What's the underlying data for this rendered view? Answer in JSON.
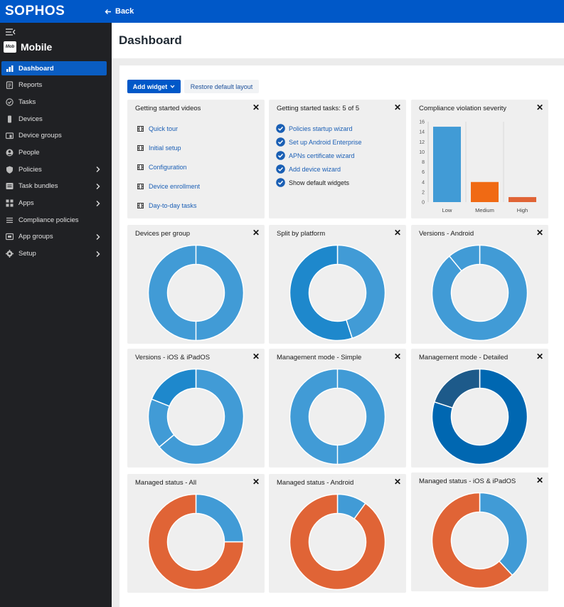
{
  "topbar": {
    "logo": "SOPHOS",
    "back_label": "Back"
  },
  "sidebar": {
    "brand_icon_text": "Mob",
    "brand": "Mobile",
    "items": [
      {
        "label": "Dashboard",
        "icon": "dashboard-icon",
        "active": true,
        "chevron": false
      },
      {
        "label": "Reports",
        "icon": "reports-icon",
        "chevron": false
      },
      {
        "label": "Tasks",
        "icon": "tasks-icon",
        "chevron": false
      },
      {
        "label": "Devices",
        "icon": "devices-icon",
        "chevron": false
      },
      {
        "label": "Device groups",
        "icon": "device-groups-icon",
        "chevron": false
      },
      {
        "label": "People",
        "icon": "people-icon",
        "chevron": false
      },
      {
        "label": "Policies",
        "icon": "policies-icon",
        "chevron": true
      },
      {
        "label": "Task bundles",
        "icon": "task-bundles-icon",
        "chevron": true
      },
      {
        "label": "Apps",
        "icon": "apps-icon",
        "chevron": true
      },
      {
        "label": "Compliance policies",
        "icon": "compliance-icon",
        "chevron": false
      },
      {
        "label": "App groups",
        "icon": "app-groups-icon",
        "chevron": true
      },
      {
        "label": "Setup",
        "icon": "setup-icon",
        "chevron": true
      }
    ]
  },
  "page": {
    "title": "Dashboard"
  },
  "toolbar": {
    "add_widget": "Add widget",
    "restore_layout": "Restore default layout"
  },
  "colors": {
    "primary": "#0058c8",
    "sidebar": "#202124",
    "blue": "#419bd6",
    "darkblue": "#0067b1",
    "navy": "#1d5a8a",
    "orange": "#f06a14",
    "red_orange": "#e06436"
  },
  "widgets": {
    "videos": {
      "title": "Getting started videos",
      "items": [
        "Quick tour",
        "Initial setup",
        "Configuration",
        "Device enrollment",
        "Day-to-day tasks"
      ]
    },
    "tasks": {
      "title": "Getting started tasks: 5 of 5",
      "items": [
        {
          "label": "Policies startup wizard",
          "link": true
        },
        {
          "label": "Set up Android Enterprise",
          "link": true
        },
        {
          "label": "APNs certificate wizard",
          "link": true
        },
        {
          "label": "Add device wizard",
          "link": true
        },
        {
          "label": "Show default widgets",
          "link": false
        }
      ]
    },
    "devices_per_group": {
      "title": "Devices per group"
    },
    "split_by_platform": {
      "title": "Split by platform"
    },
    "versions_android": {
      "title": "Versions - Android"
    },
    "versions_ios": {
      "title": "Versions - iOS & iPadOS"
    },
    "mgmt_simple": {
      "title": "Management mode - Simple"
    },
    "mgmt_detailed": {
      "title": "Management mode - Detailed"
    },
    "managed_all": {
      "title": "Managed status - All"
    },
    "managed_android": {
      "title": "Managed status - Android"
    },
    "managed_ios": {
      "title": "Managed status - iOS & iPadOS"
    },
    "compliance": {
      "title": "Compliance violation severity"
    }
  },
  "chart_data": [
    {
      "type": "bar",
      "title": "Compliance violation severity",
      "categories": [
        "Low",
        "Medium",
        "High"
      ],
      "values": [
        15,
        4,
        1
      ],
      "colors": [
        "#419bd6",
        "#f06a14",
        "#e06436"
      ],
      "ylim": [
        0,
        16
      ],
      "yticks": [
        0,
        2,
        4,
        6,
        8,
        10,
        12,
        14,
        16
      ],
      "grid": true
    },
    {
      "type": "pie",
      "title": "Devices per group",
      "values": [
        1
      ],
      "colors": [
        "#419bd6"
      ]
    },
    {
      "type": "pie",
      "title": "Split by platform",
      "values": [
        0.45,
        0.55
      ],
      "colors": [
        "#419bd6",
        "#1e88cc"
      ]
    },
    {
      "type": "pie",
      "title": "Versions - Android",
      "values": [
        0.89,
        0.11
      ],
      "colors": [
        "#419bd6",
        "#419bd6"
      ]
    },
    {
      "type": "pie",
      "title": "Versions - iOS & iPadOS",
      "values": [
        0.64,
        0.17,
        0.19
      ],
      "colors": [
        "#419bd6",
        "#419bd6",
        "#1e88cc"
      ]
    },
    {
      "type": "pie",
      "title": "Management mode - Simple",
      "values": [
        1
      ],
      "colors": [
        "#419bd6"
      ]
    },
    {
      "type": "pie",
      "title": "Management mode - Detailed",
      "values": [
        0.8,
        0.2
      ],
      "colors": [
        "#0067b1",
        "#1d5a8a"
      ]
    },
    {
      "type": "pie",
      "title": "Managed status - All",
      "values": [
        0.25,
        0.75
      ],
      "colors": [
        "#419bd6",
        "#e06436"
      ]
    },
    {
      "type": "pie",
      "title": "Managed status - Android",
      "values": [
        0.1,
        0.9
      ],
      "colors": [
        "#419bd6",
        "#e06436"
      ]
    },
    {
      "type": "pie",
      "title": "Managed status - iOS & iPadOS",
      "values": [
        0.38,
        0.62
      ],
      "colors": [
        "#419bd6",
        "#e06436"
      ]
    }
  ]
}
